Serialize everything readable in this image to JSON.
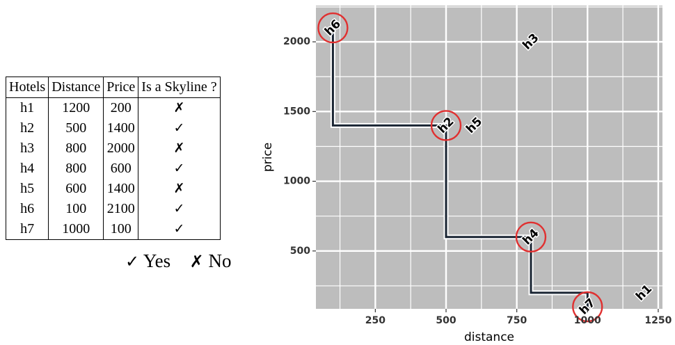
{
  "table": {
    "headers": [
      "Hotels",
      "Distance",
      "Price",
      "Is a Skyline ?"
    ],
    "rows": [
      {
        "hotel": "h1",
        "distance": "1200",
        "price": "200",
        "skyline": "✗"
      },
      {
        "hotel": "h2",
        "distance": "500",
        "price": "1400",
        "skyline": "✓"
      },
      {
        "hotel": "h3",
        "distance": "800",
        "price": "2000",
        "skyline": "✗"
      },
      {
        "hotel": "h4",
        "distance": "800",
        "price": "600",
        "skyline": "✓"
      },
      {
        "hotel": "h5",
        "distance": "600",
        "price": "1400",
        "skyline": "✗"
      },
      {
        "hotel": "h6",
        "distance": "100",
        "price": "2100",
        "skyline": "✓"
      },
      {
        "hotel": "h7",
        "distance": "1000",
        "price": "100",
        "skyline": "✓"
      }
    ]
  },
  "legend": {
    "yes_symbol": "✓",
    "yes_label": "Yes",
    "no_symbol": "✗",
    "no_label": "No"
  },
  "chart_data": {
    "type": "scatter",
    "title": "",
    "xlabel": "distance",
    "ylabel": "price",
    "xlim": [
      40,
      1265
    ],
    "ylim": [
      85,
      2260
    ],
    "x_ticks": [
      250,
      500,
      750,
      1000,
      1250
    ],
    "y_ticks": [
      500,
      1000,
      1500,
      2000
    ],
    "grid": true,
    "colors": {
      "panel": "#bdbdbd",
      "grid": "#ffffff",
      "skyline": "#1a2533",
      "circle": "#e03030"
    },
    "points": [
      {
        "label": "h1",
        "x": 1200,
        "y": 200,
        "skyline": false
      },
      {
        "label": "h2",
        "x": 500,
        "y": 1400,
        "skyline": true
      },
      {
        "label": "h3",
        "x": 800,
        "y": 2000,
        "skyline": false
      },
      {
        "label": "h4",
        "x": 800,
        "y": 600,
        "skyline": true
      },
      {
        "label": "h5",
        "x": 600,
        "y": 1400,
        "skyline": false
      },
      {
        "label": "h6",
        "x": 100,
        "y": 2100,
        "skyline": true
      },
      {
        "label": "h7",
        "x": 1000,
        "y": 100,
        "skyline": true
      }
    ],
    "skyline_path": [
      {
        "x": 100,
        "y": 2100
      },
      {
        "x": 100,
        "y": 1400
      },
      {
        "x": 500,
        "y": 1400
      },
      {
        "x": 500,
        "y": 600
      },
      {
        "x": 800,
        "y": 600
      },
      {
        "x": 800,
        "y": 200
      },
      {
        "x": 1000,
        "y": 200
      },
      {
        "x": 1000,
        "y": 100
      }
    ]
  }
}
